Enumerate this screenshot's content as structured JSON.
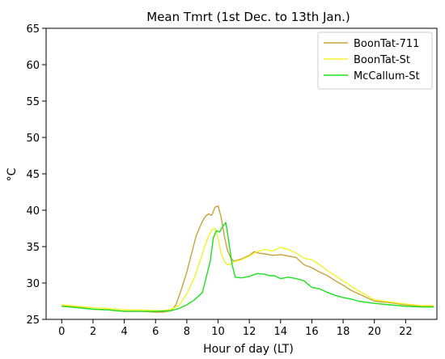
{
  "chart_data": {
    "type": "line",
    "title": "Mean Tmrt (1st Dec. to 13th Jan.)",
    "xlabel": "Hour of day (LT)",
    "ylabel": "°C",
    "xlim": [
      -1,
      24
    ],
    "ylim": [
      25,
      65
    ],
    "xticks": [
      0,
      2,
      4,
      6,
      8,
      10,
      12,
      14,
      16,
      18,
      20,
      22
    ],
    "yticks": [
      25,
      30,
      35,
      40,
      45,
      50,
      55,
      60,
      65
    ],
    "legend_position": "top-right",
    "grid": false,
    "series": [
      {
        "name": "BoonTat-711",
        "color": "#c8a23a",
        "x": [
          0,
          1,
          2,
          3,
          4,
          5,
          6,
          6.5,
          7,
          7.3,
          7.6,
          8,
          8.3,
          8.6,
          9,
          9.2,
          9.4,
          9.6,
          9.8,
          10,
          10.2,
          10.4,
          10.6,
          10.8,
          11,
          11.5,
          12,
          12.3,
          12.6,
          13,
          13.5,
          14,
          14.5,
          15,
          15.5,
          16,
          16.5,
          17,
          17.5,
          18,
          18.5,
          19,
          19.5,
          20,
          21,
          22,
          23,
          23.8
        ],
        "y": [
          26.9,
          26.7,
          26.4,
          26.3,
          26.1,
          26.1,
          26.0,
          26.0,
          26.2,
          27.0,
          28.8,
          31.5,
          34.0,
          36.5,
          38.5,
          39.2,
          39.5,
          39.3,
          40.4,
          40.6,
          39.0,
          36.5,
          34.5,
          33.5,
          33.0,
          33.3,
          33.8,
          34.3,
          34.1,
          34.0,
          33.8,
          33.9,
          33.7,
          33.5,
          32.5,
          32.1,
          31.5,
          31.0,
          30.3,
          29.7,
          29.0,
          28.5,
          28.0,
          27.5,
          27.3,
          27.0,
          26.8,
          26.8
        ]
      },
      {
        "name": "BoonTat-St",
        "color": "#f2f22a",
        "x": [
          0,
          1,
          2,
          3,
          4,
          5,
          6,
          6.5,
          7,
          7.5,
          8,
          8.5,
          9,
          9.3,
          9.6,
          9.8,
          10,
          10.2,
          10.4,
          10.6,
          10.8,
          11,
          11.5,
          12,
          12.5,
          13,
          13.5,
          14,
          14.5,
          15,
          15.5,
          16,
          16.5,
          17,
          17.5,
          18,
          18.5,
          19,
          19.5,
          20,
          21,
          22,
          23,
          23.8
        ],
        "y": [
          27.0,
          26.8,
          26.6,
          26.5,
          26.3,
          26.3,
          26.2,
          26.2,
          26.4,
          26.9,
          28.5,
          30.8,
          34.0,
          36.0,
          37.3,
          37.5,
          36.2,
          34.0,
          33.0,
          32.5,
          32.6,
          32.9,
          33.2,
          33.7,
          34.3,
          34.6,
          34.4,
          34.9,
          34.6,
          34.1,
          33.4,
          33.2,
          32.5,
          31.7,
          31.0,
          30.3,
          29.6,
          28.9,
          28.3,
          27.7,
          27.4,
          27.1,
          26.9,
          26.9
        ]
      },
      {
        "name": "McCallum-St",
        "color": "#1ee11e",
        "x": [
          0,
          1,
          2,
          3,
          4,
          5,
          6,
          7,
          7.5,
          8,
          8.5,
          9,
          9.5,
          9.7,
          9.9,
          10.1,
          10.3,
          10.5,
          10.7,
          10.9,
          11.1,
          11.5,
          12,
          12.5,
          13,
          13.3,
          13.6,
          14,
          14.5,
          15,
          15.5,
          16,
          16.5,
          17,
          17.5,
          18,
          18.5,
          19,
          20,
          21,
          22,
          23,
          23.8
        ],
        "y": [
          26.8,
          26.6,
          26.4,
          26.3,
          26.1,
          26.1,
          26.1,
          26.2,
          26.5,
          27.0,
          27.7,
          28.7,
          33.0,
          36.2,
          37.2,
          37.0,
          37.8,
          38.3,
          35.5,
          32.5,
          30.8,
          30.7,
          30.9,
          31.3,
          31.2,
          31.0,
          31.0,
          30.6,
          30.8,
          30.6,
          30.3,
          29.4,
          29.2,
          28.7,
          28.3,
          28.0,
          27.8,
          27.5,
          27.2,
          27.0,
          26.8,
          26.7,
          26.7
        ]
      }
    ]
  }
}
